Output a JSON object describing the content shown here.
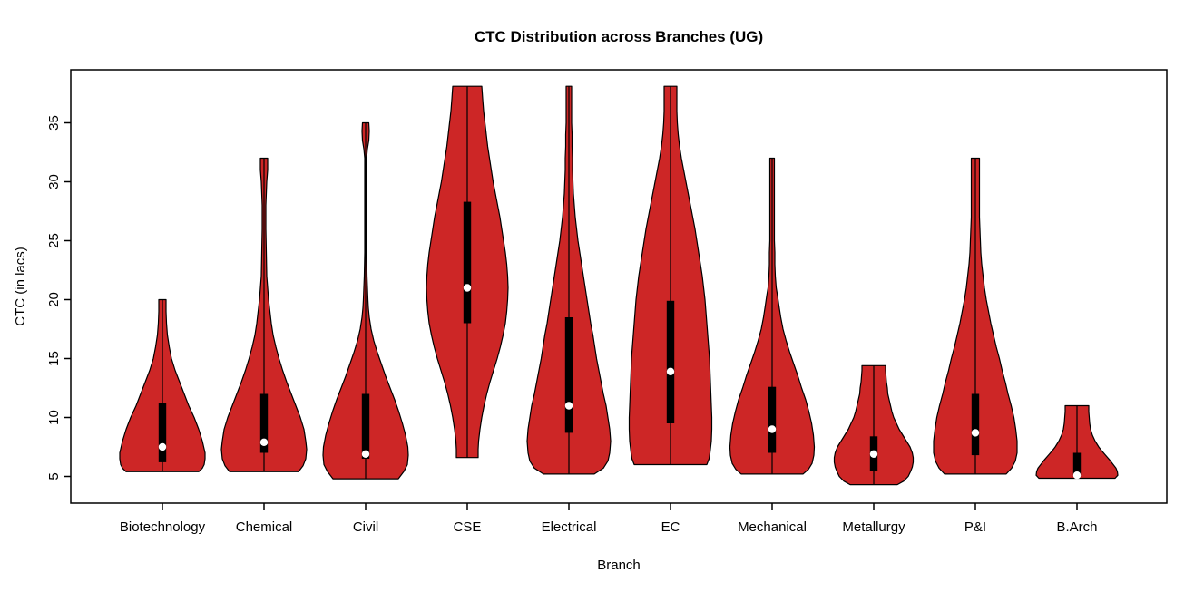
{
  "title": "CTC Distribution across Branches (UG)",
  "colors": {
    "violin_fill": "#CD2626",
    "violin_stroke": "#000000",
    "box_fill": "#000000",
    "median_dot": "#FFFFFF",
    "frame": "#000000",
    "background": "#FFFFFF"
  },
  "chart_data": {
    "type": "violin",
    "title": "CTC Distribution across Branches (UG)",
    "xlabel": "Branch",
    "ylabel": "CTC (in lacs)",
    "y_ticks": [
      5,
      10,
      15,
      20,
      25,
      30,
      35
    ],
    "ylim": [
      2.7,
      39.5
    ],
    "grid": false,
    "legend": "none",
    "categories": [
      "Biotechnology",
      "Chemical",
      "Civil",
      "CSE",
      "Electrical",
      "EC",
      "Mechanical",
      "Metallurgy",
      "P&I",
      "B.Arch"
    ],
    "series": [
      {
        "branch": "Biotechnology",
        "min": 5.4,
        "max": 20.0,
        "q1": 6.2,
        "q3": 11.2,
        "median": 7.5,
        "profile": [
          [
            20,
            4
          ],
          [
            19,
            4
          ],
          [
            18,
            4.5
          ],
          [
            17,
            5.5
          ],
          [
            16,
            7.5
          ],
          [
            15,
            10
          ],
          [
            14,
            14
          ],
          [
            13,
            19
          ],
          [
            12,
            24
          ],
          [
            11,
            29
          ],
          [
            10,
            35
          ],
          [
            9,
            40
          ],
          [
            8,
            44
          ],
          [
            7.5,
            45.5
          ],
          [
            7,
            47
          ],
          [
            6.5,
            47
          ],
          [
            6,
            46
          ],
          [
            5.7,
            44
          ],
          [
            5.4,
            40
          ]
        ]
      },
      {
        "branch": "Chemical",
        "min": 5.4,
        "max": 32.0,
        "q1": 7.0,
        "q3": 12.0,
        "median": 7.9,
        "profile": [
          [
            32,
            4
          ],
          [
            31,
            4
          ],
          [
            30,
            3
          ],
          [
            29,
            2.5
          ],
          [
            28,
            2
          ],
          [
            26,
            2
          ],
          [
            24,
            2.5
          ],
          [
            22,
            3
          ],
          [
            21,
            4
          ],
          [
            20,
            5
          ],
          [
            19,
            6.5
          ],
          [
            18,
            8
          ],
          [
            17,
            10
          ],
          [
            16,
            13
          ],
          [
            15,
            16.5
          ],
          [
            14,
            20.5
          ],
          [
            13,
            25
          ],
          [
            12,
            30
          ],
          [
            11,
            35
          ],
          [
            10,
            40
          ],
          [
            9,
            44
          ],
          [
            8,
            46
          ],
          [
            7.3,
            47
          ],
          [
            6.5,
            46
          ],
          [
            5.9,
            43
          ],
          [
            5.4,
            38
          ]
        ]
      },
      {
        "branch": "Civil",
        "min": 4.8,
        "max": 35.0,
        "q1": 6.5,
        "q3": 12.0,
        "median": 6.9,
        "profile": [
          [
            35,
            3.5
          ],
          [
            34.3,
            4
          ],
          [
            33.5,
            3.5
          ],
          [
            32.8,
            2
          ],
          [
            32,
            1
          ],
          [
            30,
            1
          ],
          [
            28,
            1
          ],
          [
            26,
            1
          ],
          [
            24,
            1
          ],
          [
            22,
            1.5
          ],
          [
            21,
            2
          ],
          [
            20,
            2.5
          ],
          [
            19.3,
            3
          ],
          [
            18.5,
            4
          ],
          [
            17.5,
            6
          ],
          [
            16.5,
            9
          ],
          [
            15.5,
            13
          ],
          [
            14.5,
            17.5
          ],
          [
            13.5,
            22
          ],
          [
            12.5,
            27
          ],
          [
            11.5,
            32
          ],
          [
            10.5,
            36.5
          ],
          [
            9.5,
            40.5
          ],
          [
            8.5,
            44
          ],
          [
            7.5,
            46.5
          ],
          [
            6.8,
            47
          ],
          [
            6,
            46
          ],
          [
            5.4,
            42
          ],
          [
            4.8,
            36
          ]
        ]
      },
      {
        "branch": "CSE",
        "min": 6.6,
        "max": 38.1,
        "q1": 18.0,
        "q3": 28.3,
        "median": 21.0,
        "profile": [
          [
            38.1,
            16
          ],
          [
            37,
            17
          ],
          [
            36,
            18
          ],
          [
            35,
            19.5
          ],
          [
            34,
            21
          ],
          [
            33,
            22.5
          ],
          [
            32,
            24.5
          ],
          [
            31,
            26.5
          ],
          [
            30,
            28.5
          ],
          [
            29,
            31
          ],
          [
            28,
            33.5
          ],
          [
            27,
            36
          ],
          [
            26,
            38
          ],
          [
            25,
            40
          ],
          [
            24,
            42
          ],
          [
            23,
            43.5
          ],
          [
            22,
            44.5
          ],
          [
            21,
            45
          ],
          [
            20,
            44.5
          ],
          [
            19,
            43.5
          ],
          [
            18,
            42
          ],
          [
            17,
            39.5
          ],
          [
            16,
            36.5
          ],
          [
            15,
            33
          ],
          [
            14,
            29
          ],
          [
            13,
            25
          ],
          [
            12,
            21.5
          ],
          [
            11,
            18.5
          ],
          [
            10,
            16
          ],
          [
            9,
            14
          ],
          [
            8,
            12.5
          ],
          [
            7.3,
            12
          ],
          [
            6.6,
            12
          ]
        ]
      },
      {
        "branch": "Electrical",
        "min": 5.2,
        "max": 38.1,
        "q1": 8.7,
        "q3": 18.5,
        "median": 11.0,
        "profile": [
          [
            38.1,
            3
          ],
          [
            37,
            3
          ],
          [
            36,
            3
          ],
          [
            35,
            3
          ],
          [
            34,
            3.5
          ],
          [
            33,
            3.5
          ],
          [
            32,
            4
          ],
          [
            31,
            4
          ],
          [
            30,
            4.5
          ],
          [
            29,
            5
          ],
          [
            28,
            6
          ],
          [
            27,
            7
          ],
          [
            26,
            8.5
          ],
          [
            25,
            10
          ],
          [
            24,
            12
          ],
          [
            23,
            14
          ],
          [
            22,
            16
          ],
          [
            21,
            18
          ],
          [
            20,
            20
          ],
          [
            19,
            22
          ],
          [
            18,
            24
          ],
          [
            17,
            26.5
          ],
          [
            16,
            28.5
          ],
          [
            15,
            30.5
          ],
          [
            14,
            33
          ],
          [
            13,
            35.5
          ],
          [
            12,
            38
          ],
          [
            11,
            41
          ],
          [
            10,
            43
          ],
          [
            9,
            45
          ],
          [
            8,
            46
          ],
          [
            7,
            45
          ],
          [
            6.3,
            43
          ],
          [
            5.7,
            38
          ],
          [
            5.2,
            28
          ]
        ]
      },
      {
        "branch": "EC",
        "min": 6.0,
        "max": 38.1,
        "q1": 9.5,
        "q3": 19.9,
        "median": 13.9,
        "profile": [
          [
            38.1,
            7
          ],
          [
            37,
            7
          ],
          [
            36,
            7
          ],
          [
            35,
            7.5
          ],
          [
            34,
            8.5
          ],
          [
            33,
            10
          ],
          [
            32,
            12
          ],
          [
            31,
            14.5
          ],
          [
            30,
            17
          ],
          [
            29,
            19.5
          ],
          [
            28,
            22
          ],
          [
            27,
            24.5
          ],
          [
            26,
            27
          ],
          [
            25,
            29
          ],
          [
            24,
            31
          ],
          [
            23,
            33
          ],
          [
            22,
            35
          ],
          [
            21,
            36.5
          ],
          [
            20,
            38
          ],
          [
            19,
            39
          ],
          [
            18,
            40
          ],
          [
            17,
            41
          ],
          [
            16,
            42
          ],
          [
            15,
            43
          ],
          [
            14,
            43.5
          ],
          [
            13,
            44
          ],
          [
            12,
            44.5
          ],
          [
            11,
            45
          ],
          [
            10,
            45.5
          ],
          [
            9,
            45.5
          ],
          [
            8,
            45
          ],
          [
            7,
            43.5
          ],
          [
            6.5,
            42.5
          ],
          [
            6,
            40
          ]
        ]
      },
      {
        "branch": "Mechanical",
        "min": 5.2,
        "max": 32.0,
        "q1": 7.0,
        "q3": 12.6,
        "median": 9.0,
        "profile": [
          [
            32,
            2.5
          ],
          [
            31,
            2.5
          ],
          [
            30,
            2.5
          ],
          [
            29,
            2.5
          ],
          [
            28,
            2.5
          ],
          [
            27,
            2.5
          ],
          [
            26,
            2.5
          ],
          [
            25,
            2.5
          ],
          [
            24,
            3
          ],
          [
            23,
            3
          ],
          [
            22,
            3.5
          ],
          [
            21,
            4.5
          ],
          [
            20.3,
            6
          ],
          [
            19.5,
            7.5
          ],
          [
            18.5,
            9.5
          ],
          [
            17.5,
            12
          ],
          [
            16.5,
            15.5
          ],
          [
            15.5,
            19.5
          ],
          [
            14.5,
            24
          ],
          [
            13.5,
            28.5
          ],
          [
            12.5,
            32.5
          ],
          [
            11.5,
            37
          ],
          [
            10.5,
            40.5
          ],
          [
            9.5,
            43.5
          ],
          [
            8.5,
            45.5
          ],
          [
            7.5,
            46.5
          ],
          [
            6.8,
            46
          ],
          [
            6.1,
            44
          ],
          [
            5.6,
            40
          ],
          [
            5.2,
            34
          ]
        ]
      },
      {
        "branch": "Metallurgy",
        "min": 4.3,
        "max": 14.4,
        "q1": 5.5,
        "q3": 8.4,
        "median": 6.9,
        "profile": [
          [
            14.4,
            13
          ],
          [
            14,
            13
          ],
          [
            13.5,
            13.5
          ],
          [
            13,
            14
          ],
          [
            12.5,
            15
          ],
          [
            12,
            15.5
          ],
          [
            11.5,
            17
          ],
          [
            11,
            18.5
          ],
          [
            10.5,
            20
          ],
          [
            10,
            22
          ],
          [
            9.5,
            25
          ],
          [
            9,
            28
          ],
          [
            8.5,
            32
          ],
          [
            8,
            36
          ],
          [
            7.5,
            40
          ],
          [
            7,
            42.5
          ],
          [
            6.6,
            43.5
          ],
          [
            6.2,
            43.5
          ],
          [
            5.8,
            42.5
          ],
          [
            5.4,
            40.5
          ],
          [
            5,
            38
          ],
          [
            4.6,
            33
          ],
          [
            4.3,
            26
          ]
        ]
      },
      {
        "branch": "P&I",
        "min": 5.2,
        "max": 32.0,
        "q1": 6.8,
        "q3": 12.0,
        "median": 8.7,
        "profile": [
          [
            32,
            4.5
          ],
          [
            31,
            4.5
          ],
          [
            30,
            4.5
          ],
          [
            29,
            4.5
          ],
          [
            28,
            4.5
          ],
          [
            27,
            4.5
          ],
          [
            26,
            5
          ],
          [
            25,
            5.5
          ],
          [
            24,
            6
          ],
          [
            23,
            7
          ],
          [
            22,
            8.5
          ],
          [
            21,
            10
          ],
          [
            20,
            12
          ],
          [
            19,
            14.5
          ],
          [
            18,
            17
          ],
          [
            17,
            20
          ],
          [
            16,
            23
          ],
          [
            15,
            26.5
          ],
          [
            14,
            29.5
          ],
          [
            13,
            33
          ],
          [
            12,
            36
          ],
          [
            11,
            39.5
          ],
          [
            10,
            42.5
          ],
          [
            9,
            44.5
          ],
          [
            8,
            46
          ],
          [
            7,
            46
          ],
          [
            6.3,
            44
          ],
          [
            5.7,
            40
          ],
          [
            5.2,
            34
          ]
        ]
      },
      {
        "branch": "B.Arch",
        "min": 4.85,
        "max": 11.0,
        "q1": 5.0,
        "q3": 7.0,
        "median": 5.1,
        "profile": [
          [
            11,
            13
          ],
          [
            10.5,
            13
          ],
          [
            10,
            13.5
          ],
          [
            9.5,
            14
          ],
          [
            9,
            15
          ],
          [
            8.5,
            17
          ],
          [
            8,
            20
          ],
          [
            7.5,
            24
          ],
          [
            7.2,
            27
          ],
          [
            6.8,
            31.5
          ],
          [
            6.4,
            36
          ],
          [
            6,
            40
          ],
          [
            5.7,
            43
          ],
          [
            5.4,
            44.5
          ],
          [
            5.1,
            45
          ],
          [
            4.85,
            42
          ]
        ]
      }
    ]
  }
}
